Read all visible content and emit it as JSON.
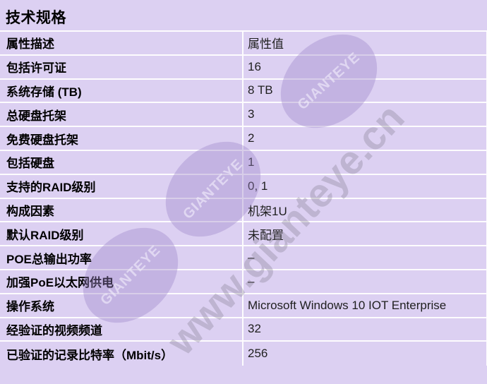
{
  "page": {
    "title": "技术规格"
  },
  "table": {
    "header": {
      "label": "属性描述",
      "value": "属性值"
    },
    "rows": [
      {
        "label": "包括许可证",
        "value": "16"
      },
      {
        "label": "系统存储 (TB)",
        "value": "8 TB"
      },
      {
        "label": "总硬盘托架",
        "value": "3"
      },
      {
        "label": "免费硬盘托架",
        "value": "2"
      },
      {
        "label": "包括硬盘",
        "value": "1"
      },
      {
        "label": "支持的RAID级别",
        "value": "0, 1"
      },
      {
        "label": "构成因素",
        "value": "机架1U"
      },
      {
        "label": "默认RAID级别",
        "value": "未配置"
      },
      {
        "label": "POE总输出功率",
        "value": "–"
      },
      {
        "label": "加强PoE以太网供电",
        "value": "–"
      },
      {
        "label": "操作系统",
        "value": "Microsoft Windows 10 IOT Enterprise"
      },
      {
        "label": "经验证的视频频道",
        "value": "32"
      },
      {
        "label": "已验证的记录比特率（Mbit/s）",
        "value": "256"
      }
    ]
  },
  "watermark": {
    "badge_text": "GIANTEYE",
    "url_text": "www.gianteye.cn"
  },
  "colors": {
    "background": "#DCD0F2",
    "separator": "#FDFCFE",
    "label_text": "#000000",
    "value_text": "#1F1F1F",
    "watermark_badge": "rgba(154,132,199,0.38)",
    "watermark_badge_text": "rgba(240,235,250,0.65)",
    "watermark_url": "rgba(124,117,134,0.30)"
  }
}
